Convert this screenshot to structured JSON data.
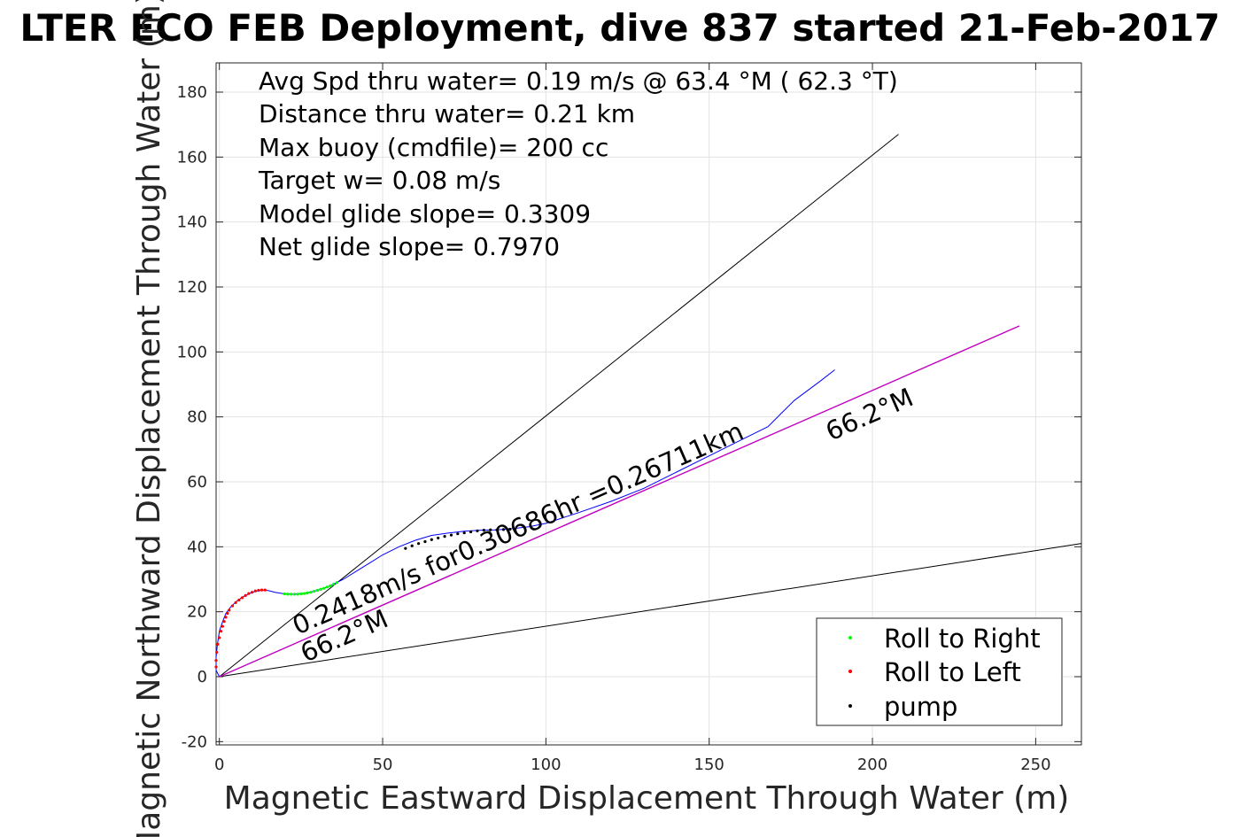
{
  "chart_data": {
    "type": "line",
    "title": "LTER ECO FEB Deployment, dive 837 started 21-Feb-2017",
    "xlabel": "Magnetic Eastward Displacement Through Water (m)",
    "ylabel": "Magnetic Northward Displacement Through Water (m)",
    "xlim": [
      -1,
      264
    ],
    "ylim": [
      -21,
      189
    ],
    "x_ticks": [
      "0",
      "50",
      "100",
      "150",
      "200",
      "250"
    ],
    "y_ticks": [
      "-20",
      "0",
      "20",
      "40",
      "60",
      "80",
      "100",
      "120",
      "140",
      "160",
      "180"
    ],
    "grid": true,
    "legend_position": "bottom-right",
    "legend": [
      {
        "label": "Roll to Right",
        "color": "#00ff00"
      },
      {
        "label": "Roll to Left",
        "color": "#ff0000"
      },
      {
        "label": "pump",
        "color": "#000000"
      }
    ],
    "info_text": [
      "Avg Spd thru water=  0.19 m/s @  63.4 °M ( 62.3 °T)",
      "Distance thru water=  0.21 km",
      "Max buoy (cmdfile)= 200 cc",
      "Target w= 0.08 m/s",
      "Model glide slope= 0.3309",
      "Net glide slope= 0.7970"
    ],
    "rotated_labels": [
      {
        "text": "0.2418m/s for0.30686hr =0.26711km",
        "angle_deg": 66.2
      },
      {
        "text": "66.2°M",
        "angle_deg": 66.2
      },
      {
        "text": "66.2°M",
        "angle_deg": 66.2
      }
    ],
    "reference_lines": [
      {
        "name": "black-upper",
        "color": "#000000",
        "x": [
          0,
          208
        ],
        "y": [
          0,
          167
        ]
      },
      {
        "name": "black-lower",
        "color": "#000000",
        "x": [
          0,
          264
        ],
        "y": [
          0,
          41
        ]
      },
      {
        "name": "magenta-heading",
        "color": "#c000c0",
        "x": [
          0,
          245
        ],
        "y": [
          0,
          108
        ]
      }
    ],
    "series": [
      {
        "name": "track",
        "color": "#0000ff",
        "x": [
          0,
          -1,
          -1,
          -0.6,
          0,
          1,
          2,
          3.5,
          5,
          7,
          9,
          11,
          13,
          15,
          17,
          20,
          23,
          26,
          29,
          32,
          35,
          38,
          42,
          46,
          50,
          55,
          60,
          65,
          70,
          75,
          80,
          85,
          90,
          95,
          100,
          110,
          120,
          130,
          140,
          150,
          160,
          168,
          172,
          176,
          180,
          184,
          188.5
        ],
        "y": [
          0,
          2,
          6,
          10,
          14,
          17,
          19.5,
          21.5,
          23,
          24.5,
          25.5,
          26.3,
          26.7,
          26.5,
          26,
          25.5,
          25.4,
          25.7,
          26.3,
          27.2,
          28.5,
          30,
          32.5,
          35,
          37.5,
          40,
          42,
          43.5,
          44.2,
          44.8,
          45.1,
          45.2,
          45.6,
          46.2,
          47.2,
          50.5,
          54,
          58,
          63,
          68,
          73,
          77,
          81,
          85,
          88,
          91,
          94.5
        ]
      },
      {
        "name": "Roll to Left",
        "color": "#ff0000",
        "x": [
          -1,
          -1,
          -0.8,
          -0.5,
          0,
          0.5,
          1,
          1.5,
          2,
          2.5,
          3,
          4,
          5,
          6,
          7,
          8,
          9,
          10,
          11,
          12,
          13,
          14
        ],
        "y": [
          3,
          5,
          7.5,
          10,
          12,
          14,
          15.5,
          17,
          18.3,
          19.5,
          20.5,
          21.8,
          22.8,
          23.6,
          24.3,
          25,
          25.6,
          26,
          26.4,
          26.6,
          26.7,
          26.7
        ]
      },
      {
        "name": "Roll to Right",
        "color": "#00ff00",
        "x": [
          20,
          21,
          22,
          23,
          24,
          25,
          26,
          27,
          28,
          29,
          30,
          31,
          32,
          33,
          34,
          35,
          36
        ],
        "y": [
          25.5,
          25.4,
          25.4,
          25.4,
          25.4,
          25.5,
          25.6,
          25.8,
          26,
          26.3,
          26.6,
          26.9,
          27.2,
          27.6,
          28,
          28.5,
          29
        ]
      },
      {
        "name": "pump",
        "color": "#000000",
        "x": [
          57,
          59,
          61,
          63,
          65,
          67,
          69,
          71,
          73,
          75,
          77,
          79,
          81,
          83,
          85,
          87,
          89
        ],
        "y": [
          39.5,
          40.3,
          41,
          41.6,
          42.2,
          42.7,
          43.2,
          43.6,
          44,
          44.3,
          44.6,
          44.9,
          45.1,
          45.2,
          45.2,
          45.3,
          45.4
        ]
      }
    ]
  }
}
